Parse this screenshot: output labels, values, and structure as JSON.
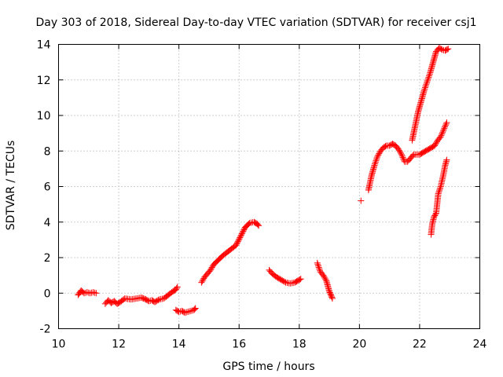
{
  "chart_data": {
    "type": "scatter",
    "title": "Day 303 of 2018, Sidereal Day-to-day VTEC variation (SDTVAR) for receiver csj1",
    "xlabel": "GPS time / hours",
    "ylabel": "SDTVAR / TECUs",
    "xlim": [
      10,
      24
    ],
    "ylim": [
      -2,
      14
    ],
    "xticks": [
      10,
      12,
      14,
      16,
      18,
      20,
      22,
      24
    ],
    "yticks": [
      -2,
      0,
      2,
      4,
      6,
      8,
      10,
      12,
      14
    ],
    "grid": true,
    "marker": "plus",
    "series": [
      {
        "color": "#ff0000",
        "segments": [
          {
            "x": [
              10.65,
              10.75,
              10.85,
              10.95,
              11.05,
              11.15,
              11.25
            ],
            "y": [
              -0.1,
              0.15,
              0.0,
              0.05,
              0.0,
              0.05,
              0.0
            ]
          },
          {
            "x": [
              11.55,
              11.65,
              11.75,
              11.85,
              11.95,
              12.05,
              12.2,
              12.4,
              12.6,
              12.75,
              12.9,
              13.0,
              13.1,
              13.2,
              13.35,
              13.5,
              13.65,
              13.8,
              13.9,
              13.95
            ],
            "y": [
              -0.6,
              -0.4,
              -0.55,
              -0.45,
              -0.6,
              -0.5,
              -0.3,
              -0.35,
              -0.3,
              -0.25,
              -0.35,
              -0.45,
              -0.4,
              -0.5,
              -0.35,
              -0.3,
              -0.1,
              0.1,
              0.2,
              0.35
            ]
          },
          {
            "x": [
              13.9,
              14.0,
              14.1,
              14.2,
              14.3,
              14.4,
              14.5,
              14.55
            ],
            "y": [
              -0.95,
              -1.05,
              -1.0,
              -1.1,
              -1.05,
              -1.0,
              -0.95,
              -0.85
            ]
          },
          {
            "x": [
              14.75,
              14.85,
              14.95,
              15.05,
              15.15,
              15.3,
              15.45,
              15.6,
              15.75,
              15.9,
              16.05,
              16.2,
              16.35,
              16.5,
              16.6,
              16.65
            ],
            "y": [
              0.6,
              0.9,
              1.1,
              1.3,
              1.6,
              1.85,
              2.1,
              2.3,
              2.5,
              2.7,
              3.2,
              3.7,
              3.95,
              4.0,
              3.9,
              3.8
            ]
          },
          {
            "x": [
              17.0,
              17.1,
              17.25,
              17.4,
              17.55,
              17.7,
              17.85,
              17.95,
              18.05
            ],
            "y": [
              1.3,
              1.1,
              0.9,
              0.75,
              0.6,
              0.55,
              0.6,
              0.7,
              0.8
            ]
          },
          {
            "x": [
              18.6,
              18.7,
              18.8,
              18.9,
              18.95,
              19.0,
              19.05,
              19.1
            ],
            "y": [
              1.7,
              1.2,
              1.0,
              0.7,
              0.4,
              0.1,
              -0.1,
              -0.3
            ]
          },
          {
            "x": [
              20.05
            ],
            "y": [
              5.2
            ]
          },
          {
            "x": [
              20.3,
              20.4,
              20.5,
              20.6,
              20.7,
              20.8,
              20.9,
              21.0,
              21.1,
              21.2,
              21.3,
              21.4,
              21.5,
              21.6,
              21.7,
              21.8,
              21.9,
              22.0,
              22.1,
              22.2,
              22.3,
              22.4,
              22.5,
              22.6,
              22.7,
              22.8,
              22.9
            ],
            "y": [
              5.8,
              6.6,
              7.2,
              7.7,
              8.0,
              8.2,
              8.3,
              8.3,
              8.4,
              8.3,
              8.1,
              7.8,
              7.4,
              7.4,
              7.6,
              7.8,
              7.8,
              7.8,
              7.9,
              8.0,
              8.1,
              8.2,
              8.3,
              8.6,
              8.8,
              9.2,
              9.6
            ]
          },
          {
            "x": [
              21.75,
              21.85,
              21.95,
              22.05,
              22.15,
              22.25,
              22.35,
              22.45,
              22.55,
              22.65,
              22.75,
              22.85,
              22.95
            ],
            "y": [
              8.6,
              9.4,
              10.2,
              10.8,
              11.4,
              11.9,
              12.4,
              13.0,
              13.6,
              13.8,
              13.7,
              13.65,
              13.75
            ]
          },
          {
            "x": [
              22.38,
              22.42,
              22.48,
              22.55,
              22.62,
              22.7,
              22.78,
              22.85,
              22.9
            ],
            "y": [
              3.3,
              3.9,
              4.3,
              4.5,
              5.6,
              6.0,
              6.6,
              7.2,
              7.5
            ]
          }
        ]
      }
    ]
  }
}
